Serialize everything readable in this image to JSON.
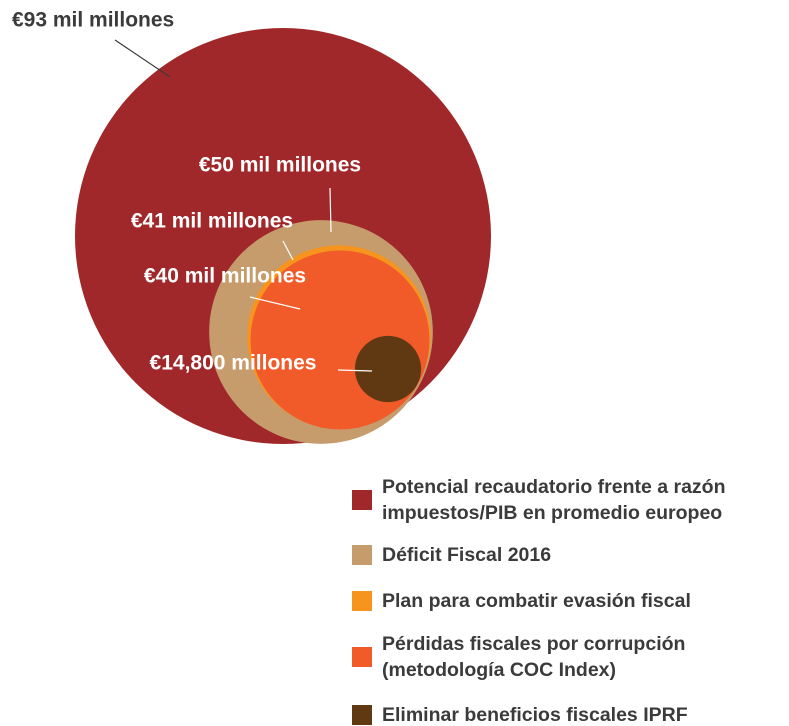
{
  "chart_data": {
    "type": "bubble",
    "categories": [
      "Potencial recaudatorio frente a razón impuestos/PIB en promedio europeo",
      "Déficit Fiscal 2016",
      "Plan para combatir evasión fiscal",
      "Pérdidas fiscales por corrupción (metodología COC Index)",
      "Eliminar beneficios fiscales IPRF"
    ],
    "values": [
      93000,
      50000,
      41000,
      40000,
      14800
    ],
    "value_labels": [
      "€93 mil millones",
      "€50 mil millones",
      "€41 mil millones",
      "€40 mil millones",
      "€14,800 millones"
    ],
    "colors": [
      "#a0282a",
      "#c69c6d",
      "#f7941d",
      "#f15a29",
      "#603913"
    ]
  }
}
